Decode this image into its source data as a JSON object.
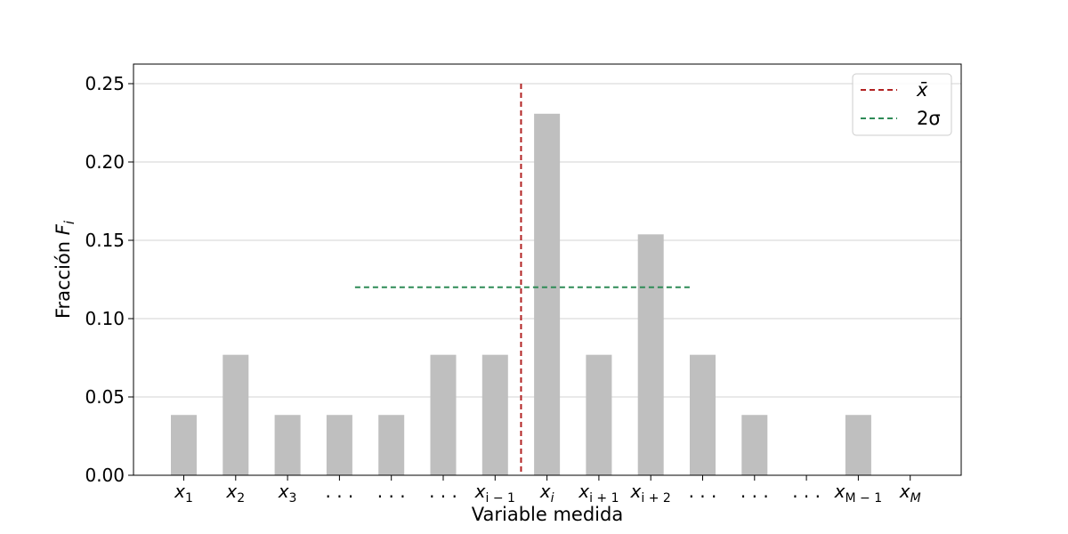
{
  "chart_data": {
    "type": "bar",
    "xlabel": "Variable medida",
    "ylabel": "Fracción F_i",
    "categories": [
      {
        "base": "x",
        "sub": "1"
      },
      {
        "base": "x",
        "sub": "2"
      },
      {
        "base": "x",
        "sub": "3"
      },
      {
        "base": ". . .",
        "sub": ""
      },
      {
        "base": ". . .",
        "sub": ""
      },
      {
        "base": ". . .",
        "sub": ""
      },
      {
        "base": "x",
        "sub": "i − 1"
      },
      {
        "base": "x",
        "sub": "i"
      },
      {
        "base": "x",
        "sub": "i + 1"
      },
      {
        "base": "x",
        "sub": "i + 2"
      },
      {
        "base": ". . .",
        "sub": ""
      },
      {
        "base": ". . .",
        "sub": ""
      },
      {
        "base": ". . .",
        "sub": ""
      },
      {
        "base": "x",
        "sub": "M − 1"
      },
      {
        "base": "x",
        "sub": "M"
      }
    ],
    "values": [
      0.0385,
      0.0769,
      0.0385,
      0.0385,
      0.0385,
      0.0769,
      0.0769,
      0.2308,
      0.0769,
      0.1538,
      0.0769,
      0.0385,
      0,
      0.0385,
      0
    ],
    "bar_color": "#bfbfbf",
    "ylim": [
      0,
      0.2625
    ],
    "yticks": [
      0,
      0.05,
      0.1,
      0.15,
      0.2,
      0.25
    ],
    "ytick_labels": [
      "0.00",
      "0.05",
      "0.10",
      "0.15",
      "0.20",
      "0.25"
    ],
    "grid": "y",
    "reference_lines": {
      "mean": {
        "legend": "x̄",
        "x_index": 6.5,
        "y_range": [
          0,
          0.25
        ],
        "color": "#b22222",
        "style": "dashed"
      },
      "two_sigma": {
        "legend": "2σ",
        "x_index_range": [
          3.3,
          9.8
        ],
        "y": 0.12,
        "color": "#2e8b57",
        "style": "dashed"
      }
    },
    "legend_position": "top-right"
  }
}
